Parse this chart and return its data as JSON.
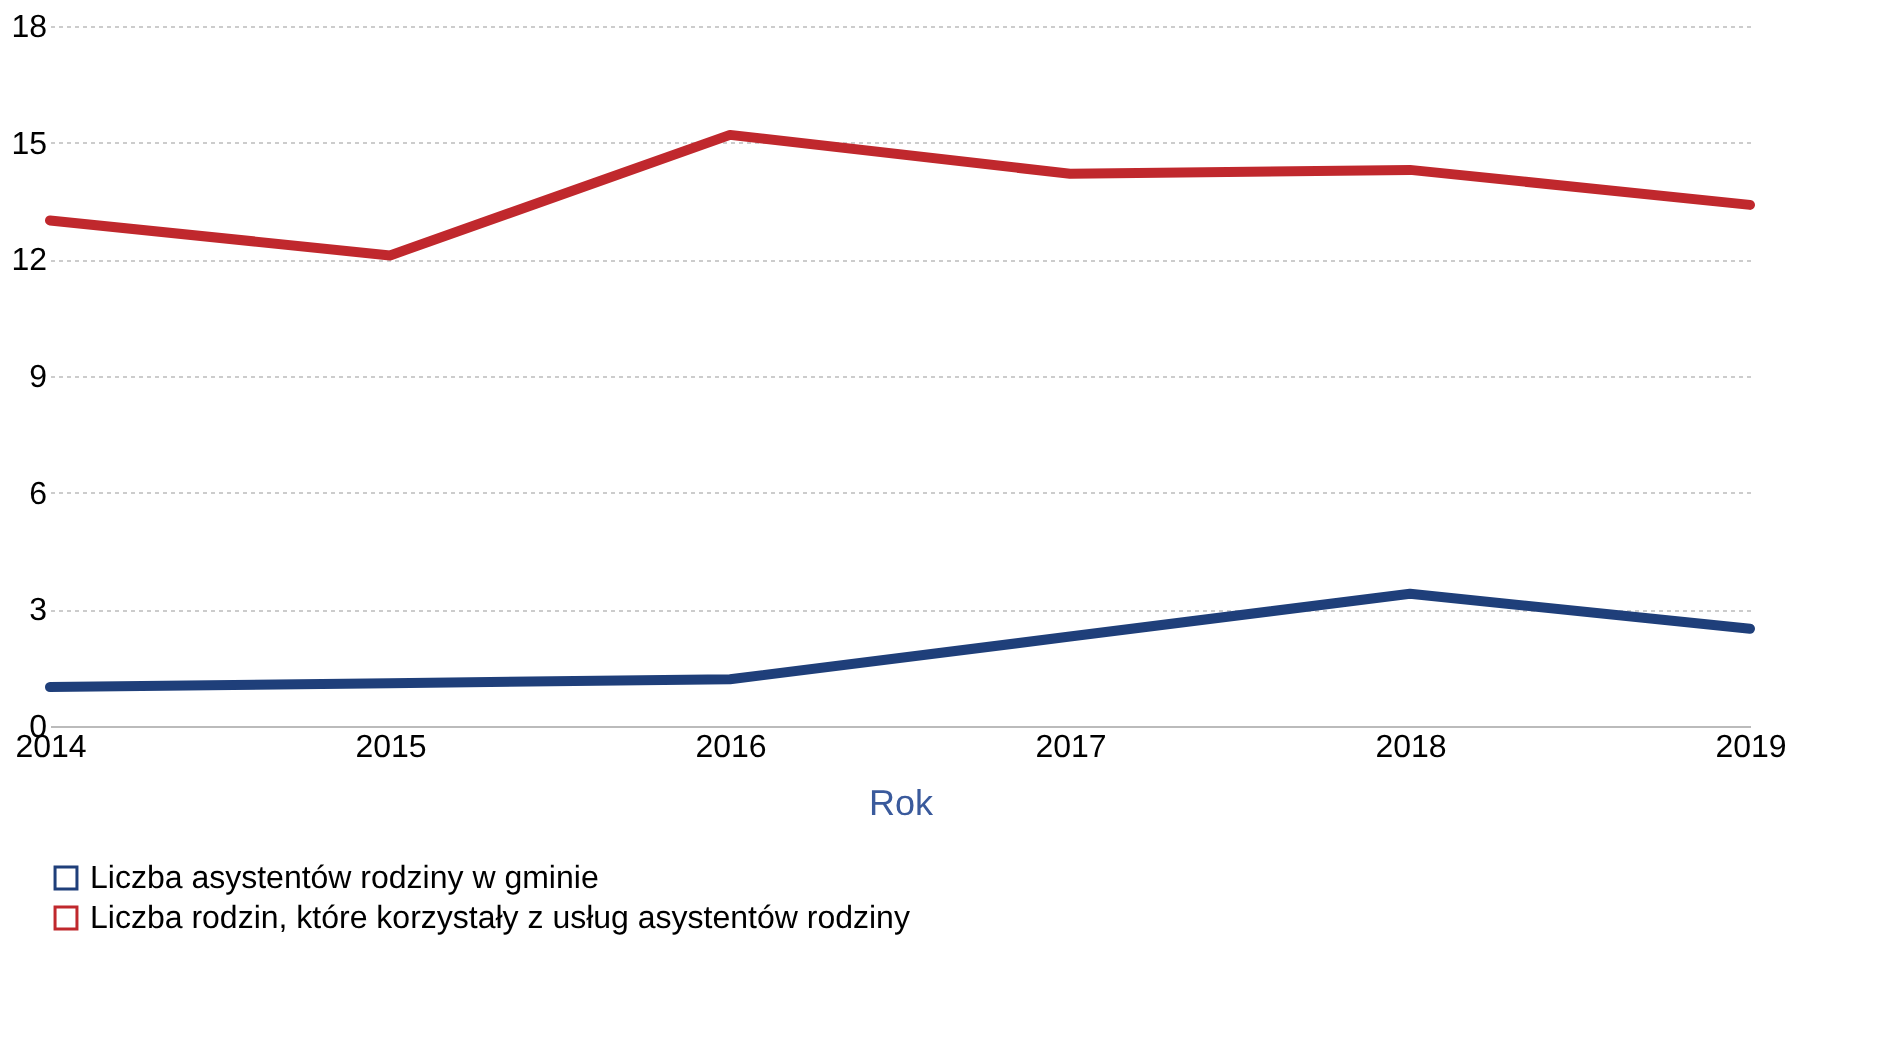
{
  "chart_data": {
    "type": "line",
    "xlabel": "Rok",
    "categories": [
      "2014",
      "2015",
      "2016",
      "2017",
      "2018",
      "2019"
    ],
    "series": [
      {
        "name": "Liczba asystentów rodziny w gminie",
        "color": "#1f3f7a",
        "values": [
          1.0,
          1.1,
          1.2,
          2.3,
          3.4,
          2.5
        ]
      },
      {
        "name": "Liczba rodzin, które korzystały z usług asystentów rodziny",
        "color": "#c0282d",
        "values": [
          13.0,
          12.1,
          15.2,
          14.2,
          14.3,
          13.4
        ]
      }
    ],
    "ylim": [
      0,
      18
    ],
    "yticks": [
      0,
      3,
      6,
      9,
      12,
      15,
      18
    ],
    "grid": "y",
    "legend": "bottom",
    "marker": "none",
    "line_style": "solid"
  }
}
